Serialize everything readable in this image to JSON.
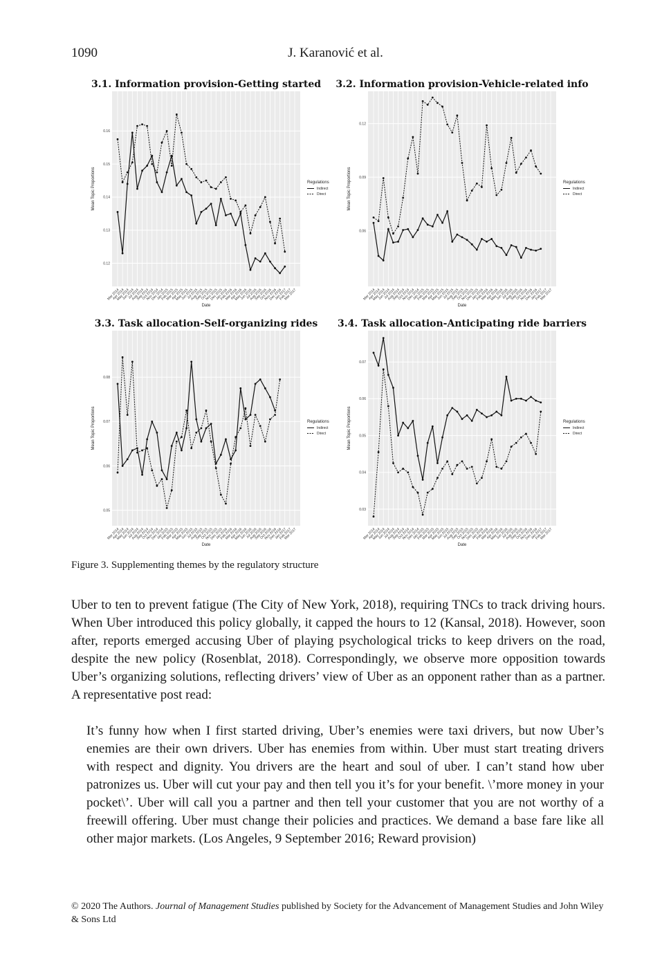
{
  "header": {
    "page_number": "1090",
    "authors": "J. Karanović et al."
  },
  "figure": {
    "caption": "Figure 3. Supplementing themes by the regulatory structure",
    "legend_title": "Regulations",
    "legend_items": [
      "Indirect",
      "Direct"
    ],
    "x_axis_label": "Date",
    "y_axis_label": "Mean Topic Proportions",
    "x_ticks": [
      "Mar 2014",
      "Apr 2014",
      "May 2014",
      "Jun 2014",
      "Jul 2014",
      "Aug 2014",
      "Sep 2014",
      "Oct 2014",
      "Nov 2014",
      "Dec 2014",
      "Jan 2015",
      "Feb 2015",
      "Mar 2015",
      "Apr 2015",
      "May 2015",
      "Jun 2015",
      "Jul 2015",
      "Aug 2015",
      "Sep 2015",
      "Oct 2015",
      "Nov 2015",
      "Dec 2015",
      "Jan 2016",
      "Feb 2016",
      "Mar 2016",
      "Apr 2016",
      "May 2016",
      "Jun 2016",
      "Jul 2016",
      "Aug 2016",
      "Sep 2016",
      "Oct 2016",
      "Nov 2016",
      "Dec 2016",
      "Jan 2017",
      "Feb 2017",
      "Mar 2017"
    ]
  },
  "chart_data": [
    {
      "type": "line",
      "title": "3.1. Information provision-Getting started",
      "xlabel": "Date",
      "ylabel": "Mean Topic Proportions",
      "ylim": [
        0.113,
        0.172
      ],
      "yticks": [
        0.12,
        0.13,
        0.14,
        0.15,
        0.16
      ],
      "ytick_labels": [
        "0.12",
        "0.13",
        "0.14",
        "0.15",
        "0.16"
      ],
      "grid": true,
      "legend": "right",
      "series": [
        {
          "name": "Indirect",
          "values": [
            0.1355,
            0.123,
            0.144,
            0.1595,
            0.1425,
            0.148,
            0.1495,
            0.1525,
            0.1445,
            0.1415,
            0.1475,
            0.1525,
            0.1435,
            0.1455,
            0.1415,
            0.1405,
            0.132,
            0.1355,
            0.1365,
            0.138,
            0.1315,
            0.1395,
            0.1345,
            0.135,
            0.1315,
            0.135,
            0.1255,
            0.118,
            0.1215,
            0.1205,
            0.123,
            0.1205,
            0.1185,
            0.117,
            0.119
          ]
        },
        {
          "name": "Direct",
          "values": [
            0.1575,
            0.1445,
            0.1475,
            0.1505,
            0.1615,
            0.162,
            0.1615,
            0.15,
            0.1475,
            0.1565,
            0.16,
            0.1495,
            0.165,
            0.1595,
            0.15,
            0.1485,
            0.146,
            0.1445,
            0.145,
            0.143,
            0.1425,
            0.1445,
            0.146,
            0.1395,
            0.139,
            0.1355,
            0.1375,
            0.129,
            0.1345,
            0.137,
            0.14,
            0.1325,
            0.126,
            0.1335,
            0.1235
          ]
        }
      ]
    },
    {
      "type": "line",
      "title": "3.2. Information provision-Vehicle-related info",
      "xlabel": "Date",
      "ylabel": "Mean Topic Proportions",
      "ylim": [
        0.029,
        0.138
      ],
      "yticks": [
        0.06,
        0.09,
        0.12
      ],
      "ytick_labels": [
        "0.06",
        "0.09",
        "0.12"
      ],
      "grid": true,
      "legend": "right",
      "series": [
        {
          "name": "Indirect",
          "values": [
            0.0645,
            0.046,
            0.0435,
            0.061,
            0.0535,
            0.054,
            0.0605,
            0.061,
            0.0565,
            0.0605,
            0.067,
            0.0635,
            0.0625,
            0.069,
            0.0645,
            0.071,
            0.054,
            0.058,
            0.0565,
            0.055,
            0.0525,
            0.0495,
            0.0555,
            0.054,
            0.0555,
            0.0515,
            0.0505,
            0.0465,
            0.052,
            0.051,
            0.045,
            0.0505,
            0.0495,
            0.049,
            0.05
          ]
        },
        {
          "name": "Direct",
          "values": [
            0.0675,
            0.0655,
            0.0895,
            0.0675,
            0.0585,
            0.0625,
            0.0785,
            0.1005,
            0.1125,
            0.092,
            0.1325,
            0.1305,
            0.1345,
            0.1315,
            0.1295,
            0.1195,
            0.115,
            0.1245,
            0.098,
            0.077,
            0.0825,
            0.0865,
            0.0845,
            0.119,
            0.095,
            0.08,
            0.083,
            0.098,
            0.112,
            0.0925,
            0.0975,
            0.101,
            0.105,
            0.096,
            0.092
          ]
        }
      ]
    },
    {
      "type": "line",
      "title": "3.3. Task allocation-Self-organizing rides",
      "xlabel": "Date",
      "ylabel": "Mean Topic Proportions",
      "ylim": [
        0.0465,
        0.0905
      ],
      "yticks": [
        0.05,
        0.06,
        0.07,
        0.08
      ],
      "ytick_labels": [
        "0.05",
        "0.06",
        "0.07",
        "0.08"
      ],
      "grid": true,
      "legend": "right",
      "series": [
        {
          "name": "Indirect",
          "values": [
            0.0785,
            0.06,
            0.0615,
            0.0635,
            0.064,
            0.058,
            0.066,
            0.07,
            0.0675,
            0.059,
            0.057,
            0.0645,
            0.0675,
            0.0635,
            0.0685,
            0.0835,
            0.0705,
            0.0655,
            0.0685,
            0.0695,
            0.0605,
            0.0625,
            0.066,
            0.0615,
            0.0635,
            0.0775,
            0.0705,
            0.0715,
            0.0785,
            0.0795,
            0.0775,
            0.0755,
            0.0725
          ]
        },
        {
          "name": "Direct",
          "values": [
            0.0585,
            0.0845,
            0.0715,
            0.0835,
            0.063,
            0.0635,
            0.064,
            0.059,
            0.0555,
            0.057,
            0.0505,
            0.0545,
            0.0655,
            0.0665,
            0.0725,
            0.064,
            0.0675,
            0.0685,
            0.0725,
            0.0655,
            0.0595,
            0.0535,
            0.0515,
            0.0605,
            0.0665,
            0.0685,
            0.073,
            0.0645,
            0.0715,
            0.069,
            0.0655,
            0.0705,
            0.0715,
            0.0795
          ]
        }
      ]
    },
    {
      "type": "line",
      "title": "3.4. Task allocation-Anticipating ride barriers",
      "xlabel": "Date",
      "ylabel": "Mean Topic Proportions",
      "ylim": [
        0.0255,
        0.0785
      ],
      "yticks": [
        0.03,
        0.04,
        0.05,
        0.06,
        0.07
      ],
      "ytick_labels": [
        "0.03",
        "0.04",
        "0.05",
        "0.06",
        "0.07"
      ],
      "grid": true,
      "legend": "right",
      "series": [
        {
          "name": "Indirect",
          "values": [
            0.0725,
            0.069,
            0.0765,
            0.0665,
            0.063,
            0.05,
            0.0535,
            0.052,
            0.054,
            0.0445,
            0.038,
            0.048,
            0.0525,
            0.0425,
            0.0495,
            0.0555,
            0.0575,
            0.0565,
            0.0545,
            0.0555,
            0.054,
            0.057,
            0.056,
            0.055,
            0.0555,
            0.0565,
            0.0555,
            0.066,
            0.0595,
            0.06,
            0.06,
            0.0595,
            0.0605,
            0.0595,
            0.059
          ]
        },
        {
          "name": "Direct",
          "values": [
            0.028,
            0.0455,
            0.068,
            0.058,
            0.0425,
            0.04,
            0.041,
            0.04,
            0.036,
            0.0345,
            0.0285,
            0.0345,
            0.0355,
            0.0385,
            0.041,
            0.043,
            0.0395,
            0.042,
            0.043,
            0.041,
            0.0415,
            0.037,
            0.0385,
            0.043,
            0.049,
            0.0415,
            0.041,
            0.043,
            0.047,
            0.048,
            0.0495,
            0.0505,
            0.048,
            0.045,
            0.0565
          ]
        }
      ]
    }
  ],
  "body_paragraph": "Uber to ten to prevent fatigue (The City of New York, 2018), requiring TNCs to track driving hours. When Uber introduced this policy globally, it capped the hours to 12 (Kansal, 2018). However, soon after, reports emerged accusing Uber of playing psychological tricks to keep drivers on the road, despite the new policy (Rosenblat, 2018). Correspondingly, we observe more opposition towards Uber’s organizing solutions, reflecting drivers’ view of Uber as an opponent rather than as a partner. A representative post read:",
  "quote": "It’s funny how when I first started driving, Uber’s enemies were taxi drivers, but now Uber’s enemies are their own drivers. Uber has enemies from within. Uber must start treating drivers with respect and dignity. You drivers are the heart and soul of uber. I can’t stand how uber patronizes us. Uber will cut your pay and then tell you it’s for your benefit. \\’more money in your pocket\\’. Uber will call you a partner and then tell your customer that you are not worthy of a freewill offering. Uber must change their policies and practices. We demand a base fare like all other major markets. (Los Angeles, 9 September 2016; Reward provision)",
  "footer": {
    "prefix": "© 2020 The Authors. ",
    "journal": "Journal of Management Studies",
    "suffix": " published by Society for the Advancement of Management Studies and John Wiley & Sons Ltd"
  }
}
